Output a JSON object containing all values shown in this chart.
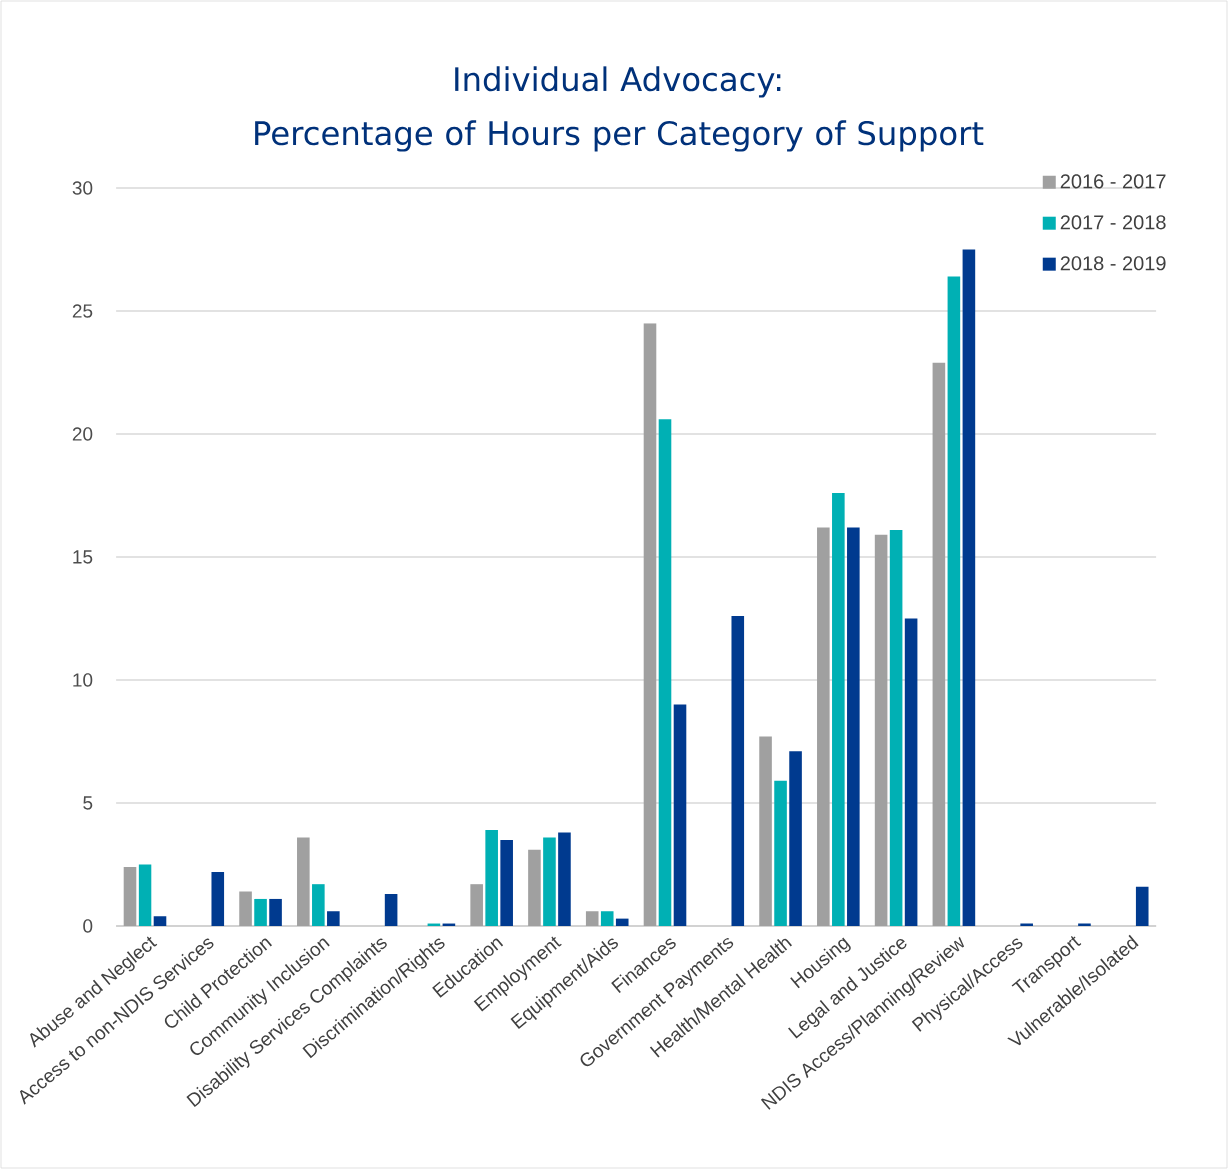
{
  "chart_data": {
    "type": "bar",
    "title": "Individual Advocacy:\nPercentage of Hours per Category of Support",
    "categories": [
      "Abuse and Neglect",
      "Access to non-NDIS Services",
      "Child Protection",
      "Community Inclusion",
      "Disability Services Complaints",
      "Discrimination/Rights",
      "Education",
      "Employment",
      "Equipment/Aids",
      "Finances",
      "Government Payments",
      "Health/Mental Health",
      "Housing",
      "Legal and Justice",
      "NDIS Access/Planning/Review",
      "Physical/Access",
      "Transport",
      "Vulnerable/Isolated"
    ],
    "series": [
      {
        "name": "2016 - 2017",
        "color": "#a0a0a0",
        "values": [
          2.4,
          0,
          1.4,
          3.6,
          0,
          0,
          1.7,
          3.1,
          0.6,
          24.5,
          0,
          7.7,
          16.2,
          15.9,
          22.9,
          0,
          0,
          0
        ]
      },
      {
        "name": "2017 - 2018",
        "color": "#00b0b4",
        "values": [
          2.5,
          0,
          1.1,
          1.7,
          0,
          0.1,
          3.9,
          3.6,
          0.6,
          20.6,
          0,
          5.9,
          17.6,
          16.1,
          26.4,
          0,
          0,
          0
        ]
      },
      {
        "name": "2018 - 2019",
        "color": "#003a8f",
        "values": [
          0.4,
          2.2,
          1.1,
          0.6,
          1.3,
          0.1,
          3.5,
          3.8,
          0.3,
          9.0,
          12.6,
          7.1,
          16.2,
          12.5,
          27.5,
          0.1,
          0.1,
          1.6
        ]
      }
    ],
    "ylim": [
      0,
      30
    ],
    "yticks": [
      0,
      5,
      10,
      15,
      20,
      25,
      30
    ],
    "grid": "y",
    "legend": "top right"
  }
}
